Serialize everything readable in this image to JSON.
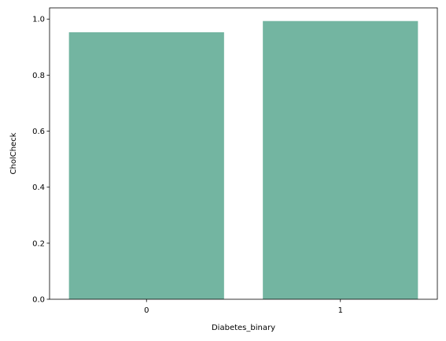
{
  "chart_data": {
    "type": "bar",
    "categories": [
      "0",
      "1"
    ],
    "values": [
      0.953,
      0.993
    ],
    "title": "",
    "xlabel": "Diabetes_binary",
    "ylabel": "CholCheck",
    "ylim": [
      0,
      1.04
    ],
    "yticks": [
      0.0,
      0.2,
      0.4,
      0.6,
      0.8,
      1.0
    ],
    "ytick_labels": [
      "0.0",
      "0.2",
      "0.4",
      "0.6",
      "0.8",
      "1.0"
    ],
    "grid": false,
    "bar_color": "#73b5a1"
  }
}
